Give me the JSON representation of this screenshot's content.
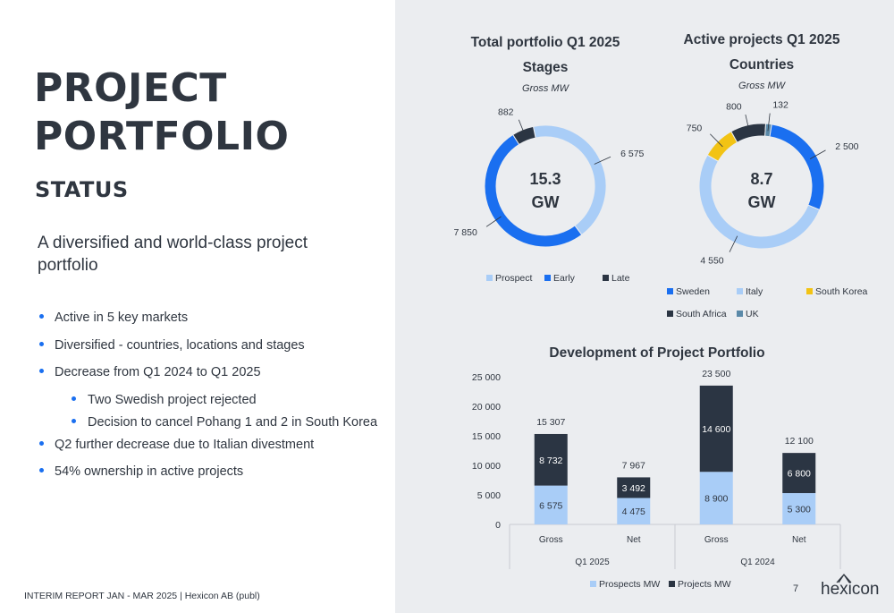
{
  "slide": {
    "title_line1": "PROJECT",
    "title_line2": "PORTFOLIO",
    "subtitle": "STATUS",
    "lead": "A diversified and world-class project portfolio",
    "bullets": [
      {
        "text": "Active in 5 key markets",
        "level": 1
      },
      {
        "text": "Diversified - countries, locations and stages",
        "level": 1
      },
      {
        "text": "Decrease from Q1 2024 to Q1 2025",
        "level": 1
      },
      {
        "text": "Two Swedish project rejected",
        "level": 2
      },
      {
        "text": "Decision to cancel Pohang 1 and 2 in South Korea",
        "level": 2
      },
      {
        "text": "Q2 further decrease due to Italian divestment",
        "level": 1
      },
      {
        "text": "54% ownership in active projects",
        "level": 1
      }
    ],
    "footer": "INTERIM REPORT JAN - MAR 2025 | Hexicon AB (publ)",
    "page_number": "7",
    "logo_text": "hexicon"
  },
  "chart_data": [
    {
      "type": "pie",
      "title_line1": "Total portfolio Q1 2025",
      "title_line2": "Stages",
      "subtitle": "Gross MW",
      "center_value": "15.3",
      "center_unit": "GW",
      "slices": [
        {
          "name": "Prospect",
          "value": 6575,
          "label": "6 575",
          "color": "#a9cdf7"
        },
        {
          "name": "Early",
          "value": 7850,
          "label": "7 850",
          "color": "#1a6ff0"
        },
        {
          "name": "Late",
          "value": 882,
          "label": "882",
          "color": "#2b3543"
        }
      ],
      "legend": [
        "Prospect",
        "Early",
        "Late"
      ]
    },
    {
      "type": "pie",
      "title_line1": "Active projects Q1 2025",
      "title_line2": "Countries",
      "subtitle": "Gross MW",
      "center_value": "8.7",
      "center_unit": "GW",
      "slices": [
        {
          "name": "Sweden",
          "value": 2500,
          "label": "2 500",
          "color": "#1a6ff0"
        },
        {
          "name": "Italy",
          "value": 4550,
          "label": "4 550",
          "color": "#a9cdf7"
        },
        {
          "name": "South Korea",
          "value": 750,
          "label": "750",
          "color": "#f2c314"
        },
        {
          "name": "South Africa",
          "value": 800,
          "label": "800",
          "color": "#2b3543"
        },
        {
          "name": "UK",
          "value": 132,
          "label": "132",
          "color": "#5a89a8"
        }
      ],
      "legend": [
        "Sweden",
        "Italy",
        "South Korea",
        "South Africa",
        "UK"
      ]
    },
    {
      "type": "bar",
      "stacked": true,
      "title": "Development of Project Portfolio",
      "categories": [
        "Gross",
        "Net",
        "Gross",
        "Net"
      ],
      "groups": [
        {
          "label": "Q1 2025",
          "categories": [
            0,
            1
          ]
        },
        {
          "label": "Q1 2024",
          "categories": [
            2,
            3
          ]
        }
      ],
      "series": [
        {
          "name": "Prospects MW",
          "values": [
            6575,
            4475,
            8900,
            5300
          ],
          "labels": [
            "6 575",
            "4 475",
            "8 900",
            "5 300"
          ],
          "color": "#a9cdf7"
        },
        {
          "name": "Projects MW",
          "values": [
            8732,
            3492,
            14600,
            6800
          ],
          "labels": [
            "8 732",
            "3 492",
            "14 600",
            "6 800"
          ],
          "color": "#2b3543"
        }
      ],
      "totals": [
        "15 307",
        "7 967",
        "23 500",
        "12 100"
      ],
      "ylim": [
        0,
        25000
      ],
      "yticks": [
        0,
        5000,
        10000,
        15000,
        20000,
        25000
      ],
      "ytick_labels": [
        "0",
        "5 000",
        "10 000",
        "15 000",
        "20 000",
        "25 000"
      ],
      "grid": false,
      "legend": "bottom"
    }
  ]
}
